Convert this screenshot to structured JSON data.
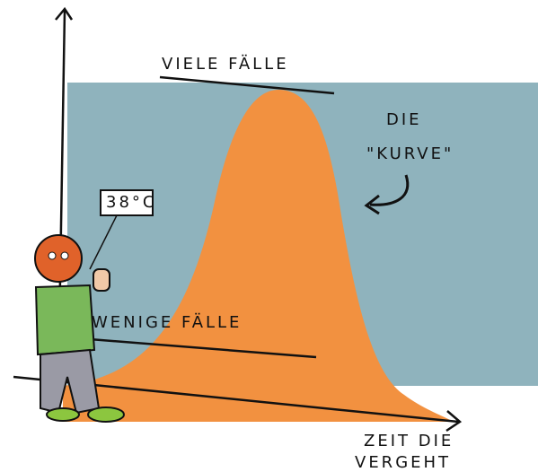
{
  "labels": {
    "top": "VIELE FÄLLE",
    "curve_line1": "DIE",
    "curve_line2": "\"KURVE\"",
    "thermometer": "38°C",
    "bottom": "WENIGE FÄLLE",
    "x_axis_line1": "ZEIT DIE",
    "x_axis_line2": "VERGEHT"
  }
}
